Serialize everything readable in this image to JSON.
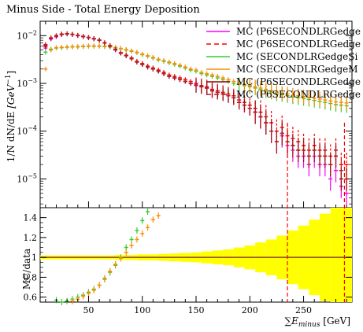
{
  "chart_data": [
    {
      "panel": "main",
      "type": "line",
      "title": "Minus Side - Total Energy Deposition",
      "ylabel": "1/N dN/dE [GeV^-1]",
      "ylabel_parts": {
        "prefix": "1/N dN/dE ",
        "unit_open": "[GeV",
        "unit_exp": "−1",
        "unit_close": "]"
      },
      "x_range": [
        5,
        295
      ],
      "y_scale": "log",
      "y_range": [
        2.5e-06,
        0.02
      ],
      "y_ticks": [
        {
          "label_base": "10",
          "label_exp": "−2",
          "value": 0.01
        },
        {
          "label_base": "10",
          "label_exp": "−3",
          "value": 0.001
        },
        {
          "label_base": "10",
          "label_exp": "−4",
          "value": 0.0001
        },
        {
          "label_base": "10",
          "label_exp": "−5",
          "value": 1e-05
        }
      ],
      "legend_placement": "top-right",
      "series": [
        {
          "name": "MC (P6SECONDLRGedge",
          "color": "#ff00ff",
          "style": "solid",
          "x": [
            10,
            15,
            20,
            25,
            30,
            35,
            40,
            45,
            50,
            55,
            60,
            65,
            70,
            75,
            80,
            85,
            90,
            95,
            100,
            105,
            110,
            115,
            120,
            125,
            130,
            135,
            140,
            145,
            150,
            155,
            160,
            165,
            170,
            175,
            180,
            185,
            190,
            195,
            200,
            205,
            210,
            215,
            220,
            225,
            230,
            235,
            240,
            245,
            250,
            255,
            260,
            265,
            270,
            275,
            280,
            285,
            290
          ],
          "y": [
            0.0055,
            0.0085,
            0.0095,
            0.0105,
            0.0108,
            0.0105,
            0.01,
            0.0095,
            0.009,
            0.0085,
            0.008,
            0.007,
            0.006,
            0.005,
            0.0043,
            0.0038,
            0.0033,
            0.0028,
            0.0025,
            0.0022,
            0.002,
            0.0018,
            0.0016,
            0.0014,
            0.0013,
            0.0012,
            0.0011,
            0.001,
            0.00095,
            0.00085,
            0.0008,
            0.0007,
            0.00065,
            0.0006,
            0.00055,
            0.0005,
            0.0004,
            0.00035,
            0.0003,
            0.00025,
            0.0002,
            0.00015,
            0.0001,
            6e-05,
            8e-05,
            5e-05,
            4e-05,
            3e-05,
            3e-05,
            2e-05,
            3e-05,
            2e-05,
            2e-05,
            1e-05,
            1.5e-05,
            7e-06,
            5e-06
          ]
        },
        {
          "name": "MC (P6SECONDLRGedge",
          "color": "#ff0000",
          "style": "dashed",
          "x": [
            10,
            15,
            20,
            25,
            30,
            35,
            40,
            45,
            50,
            55,
            60,
            65,
            70,
            75,
            80,
            85,
            90,
            95,
            100,
            105,
            110,
            115,
            120,
            125,
            130,
            135,
            140,
            145,
            150,
            155,
            160,
            165,
            170,
            175,
            180,
            185,
            190,
            195,
            200,
            205,
            210,
            215,
            220,
            225,
            230,
            235,
            240,
            245,
            250,
            255,
            260,
            265,
            270,
            275,
            280,
            285,
            290
          ],
          "y": [
            0.0065,
            0.009,
            0.01,
            0.0108,
            0.011,
            0.0107,
            0.0102,
            0.0097,
            0.0092,
            0.0087,
            0.0081,
            0.0071,
            0.0062,
            0.0052,
            0.0044,
            0.0039,
            0.0034,
            0.0029,
            0.0026,
            0.0023,
            0.0021,
            0.0019,
            0.0017,
            0.0015,
            0.0014,
            0.0013,
            0.0012,
            0.0011,
            0.001,
            0.0009,
            0.00085,
            0.00075,
            0.0007,
            0.00065,
            0.0006,
            0.00055,
            0.00045,
            0.0004,
            0.00035,
            0.0003,
            0.00025,
            0.0002,
            0.00015,
            0.0001,
            0.00012,
            8e-05,
            7e-05,
            6e-05,
            5e-05,
            4e-05,
            5e-05,
            4e-05,
            4e-05,
            3e-05,
            4e-05,
            2e-05,
            2e-05
          ]
        },
        {
          "name": "MC (SECONDLRGedgeSi",
          "color": "#32cd32",
          "style": "solid",
          "x": [
            10,
            15,
            20,
            25,
            30,
            35,
            40,
            45,
            50,
            55,
            60,
            65,
            70,
            75,
            80,
            85,
            90,
            95,
            100,
            105,
            110,
            115,
            120,
            125,
            130,
            135,
            140,
            145,
            150,
            155,
            160,
            165,
            170,
            175,
            180,
            185,
            190,
            195,
            200,
            205,
            210,
            215,
            220,
            225,
            230,
            235,
            240,
            245,
            250,
            255,
            260,
            265,
            270,
            275,
            280,
            285,
            290
          ],
          "y": [
            0.0045,
            0.0052,
            0.0055,
            0.0056,
            0.0057,
            0.0058,
            0.0058,
            0.0059,
            0.006,
            0.006,
            0.006,
            0.0059,
            0.0058,
            0.0056,
            0.0053,
            0.005,
            0.0047,
            0.0044,
            0.004,
            0.0037,
            0.0034,
            0.0031,
            0.0029,
            0.0027,
            0.0025,
            0.0023,
            0.0021,
            0.0019,
            0.0018,
            0.0016,
            0.0015,
            0.0014,
            0.0013,
            0.0012,
            0.0011,
            0.001,
            0.00095,
            0.0009,
            0.00085,
            0.0008,
            0.00075,
            0.0007,
            0.00065,
            0.0006,
            0.00058,
            0.00055,
            0.00052,
            0.0005,
            0.00048,
            0.00046,
            0.00044,
            0.00042,
            0.0004,
            0.00038,
            0.00036,
            0.00035,
            0.00034
          ]
        },
        {
          "name": "MC (SECONDLRGedgeM",
          "color": "#ff8c00",
          "style": "solid",
          "x": [
            10,
            15,
            20,
            25,
            30,
            35,
            40,
            45,
            50,
            55,
            60,
            65,
            70,
            75,
            80,
            85,
            90,
            95,
            100,
            105,
            110,
            115,
            120,
            125,
            130,
            135,
            140,
            145,
            150,
            155,
            160,
            165,
            170,
            175,
            180,
            185,
            190,
            195,
            200,
            205,
            210,
            215,
            220,
            225,
            230,
            235,
            240,
            245,
            250,
            255,
            260,
            265,
            270,
            275,
            280,
            285,
            290
          ],
          "y": [
            0.002,
            0.005,
            0.0056,
            0.0057,
            0.0058,
            0.0059,
            0.0059,
            0.006,
            0.0061,
            0.0061,
            0.0061,
            0.006,
            0.0059,
            0.0057,
            0.0054,
            0.0051,
            0.0048,
            0.0045,
            0.0041,
            0.0038,
            0.0035,
            0.0032,
            0.003,
            0.0028,
            0.0026,
            0.0024,
            0.0022,
            0.002,
            0.0019,
            0.0017,
            0.0016,
            0.0015,
            0.0014,
            0.0013,
            0.0012,
            0.0011,
            0.001,
            0.00095,
            0.0009,
            0.00085,
            0.0008,
            0.00075,
            0.0007,
            0.00065,
            0.00062,
            0.0006,
            0.00057,
            0.00055,
            0.00053,
            0.00051,
            0.00049,
            0.00047,
            0.00045,
            0.00043,
            0.00041,
            0.0004,
            0.00039
          ]
        },
        {
          "name": "MC (P6SECONDLRGedge",
          "color": "#8b0000",
          "style": "solid",
          "x": [
            10,
            15,
            20,
            25,
            30,
            35,
            40,
            45,
            50,
            55,
            60,
            65,
            70,
            75,
            80,
            85,
            90,
            95,
            100,
            105,
            110,
            115,
            120,
            125,
            130,
            135,
            140,
            145,
            150,
            155,
            160,
            165,
            170,
            175,
            180,
            185,
            190,
            195,
            200,
            205,
            210,
            215,
            220,
            225,
            230,
            235,
            240,
            245,
            250,
            255,
            260,
            265,
            270,
            275,
            280,
            285,
            290
          ],
          "y": [
            0.006,
            0.0088,
            0.0098,
            0.0106,
            0.0109,
            0.0106,
            0.0101,
            0.0096,
            0.0091,
            0.0086,
            0.008,
            0.007,
            0.0061,
            0.0051,
            0.0043,
            0.0038,
            0.0033,
            0.0028,
            0.0025,
            0.0022,
            0.002,
            0.0018,
            0.0016,
            0.0014,
            0.0013,
            0.0012,
            0.0011,
            0.001,
            0.0009,
            0.00085,
            0.0008,
            0.0007,
            0.00065,
            0.0006,
            0.00055,
            0.0005,
            0.0004,
            0.00035,
            0.0003,
            0.00025,
            0.0002,
            0.00015,
            0.0001,
            6e-05,
            9e-05,
            6e-05,
            5e-05,
            4e-05,
            4e-05,
            3e-05,
            4e-05,
            3e-05,
            3e-05,
            2e-05,
            3e-05,
            1e-05,
            1e-05
          ]
        },
        {
          "name": "MC (P6SECONDLRGedge",
          "color": "#b22222",
          "style": "dashed",
          "x": [
            10,
            15,
            20,
            25,
            30,
            35,
            40,
            45,
            50,
            55,
            60,
            65,
            70,
            75,
            80,
            85,
            90,
            95,
            100,
            105,
            110,
            115,
            120,
            125,
            130,
            135,
            140,
            145,
            150,
            155,
            160,
            165,
            170,
            175,
            180,
            185,
            190,
            195,
            200,
            205,
            210,
            215,
            220,
            225,
            230,
            235,
            240,
            245,
            250,
            255,
            260,
            265,
            270,
            275,
            280,
            285,
            290
          ],
          "y": [
            0.0062,
            0.0089,
            0.0099,
            0.0107,
            0.0109,
            0.0106,
            0.0101,
            0.0096,
            0.0091,
            0.0086,
            0.008,
            0.007,
            0.0061,
            0.0051,
            0.0043,
            0.0038,
            0.0033,
            0.0028,
            0.0025,
            0.0022,
            0.002,
            0.0018,
            0.0016,
            0.0014,
            0.0013,
            0.0012,
            0.0011,
            0.001,
            0.0009,
            0.00085,
            0.0008,
            0.0007,
            0.00065,
            0.0006,
            0.00055,
            0.0005,
            0.0004,
            0.00035,
            0.0003,
            0.00025,
            0.0002,
            0.00015,
            0.0001,
            6e-05,
            9e-05,
            6e-05,
            5e-05,
            4e-05,
            4e-05,
            3e-05,
            4e-05,
            3e-05,
            3e-05,
            2e-05,
            3e-05,
            1.5e-05,
            1e-05
          ]
        }
      ]
    },
    {
      "panel": "ratio",
      "type": "scatter",
      "ylabel": "MC/data",
      "xlabel": "∑E_minus [GeV]",
      "xlabel_parts": {
        "sigma": "∑",
        "e": "E",
        "sub": "minus",
        "unit": " [GeV]"
      },
      "x_range": [
        5,
        295
      ],
      "x_ticks": [
        50,
        100,
        150,
        200,
        250
      ],
      "y_range": [
        0.55,
        1.5
      ],
      "y_ticks": [
        0.6,
        0.8,
        1,
        1.2,
        1.4
      ],
      "reference_line": 1,
      "uncertainty_band_color": "#ffff00",
      "uncertainty_band": {
        "x": [
          10,
          20,
          30,
          40,
          50,
          60,
          70,
          80,
          90,
          100,
          110,
          120,
          130,
          140,
          150,
          160,
          170,
          180,
          190,
          200,
          210,
          220,
          230,
          240,
          250,
          260,
          270,
          280,
          290
        ],
        "halfwidth": [
          0.02,
          0.02,
          0.02,
          0.02,
          0.02,
          0.02,
          0.02,
          0.025,
          0.025,
          0.03,
          0.03,
          0.035,
          0.04,
          0.045,
          0.05,
          0.06,
          0.07,
          0.08,
          0.1,
          0.12,
          0.15,
          0.18,
          0.22,
          0.27,
          0.32,
          0.38,
          0.44,
          0.5,
          0.55
        ]
      },
      "series": [
        {
          "name": "SECONDLRGedgeSi",
          "color": "#32cd32",
          "x": [
            20,
            25,
            30,
            35,
            40,
            45,
            50,
            55,
            60,
            65,
            70,
            75,
            80,
            85,
            90,
            95,
            100,
            105,
            110
          ],
          "y": [
            0.57,
            0.55,
            0.56,
            0.58,
            0.6,
            0.62,
            0.65,
            0.68,
            0.72,
            0.78,
            0.85,
            0.92,
            1.0,
            1.1,
            1.18,
            1.27,
            1.37,
            1.46,
            1.55
          ]
        },
        {
          "name": "SECONDLRGedgeM",
          "color": "#ff8c00",
          "x": [
            20,
            25,
            30,
            35,
            40,
            45,
            50,
            55,
            60,
            65,
            70,
            75,
            80,
            85,
            90,
            95,
            100,
            105,
            110,
            115
          ],
          "y": [
            0.53,
            0.52,
            0.54,
            0.56,
            0.58,
            0.61,
            0.64,
            0.67,
            0.72,
            0.79,
            0.86,
            0.93,
            0.99,
            1.05,
            1.12,
            1.18,
            1.24,
            1.3,
            1.38,
            1.42
          ]
        }
      ],
      "vertical_dashed_lines": [
        {
          "x": 235,
          "color": "#ff0000"
        },
        {
          "x": 288,
          "color": "#ff0000"
        }
      ]
    }
  ]
}
